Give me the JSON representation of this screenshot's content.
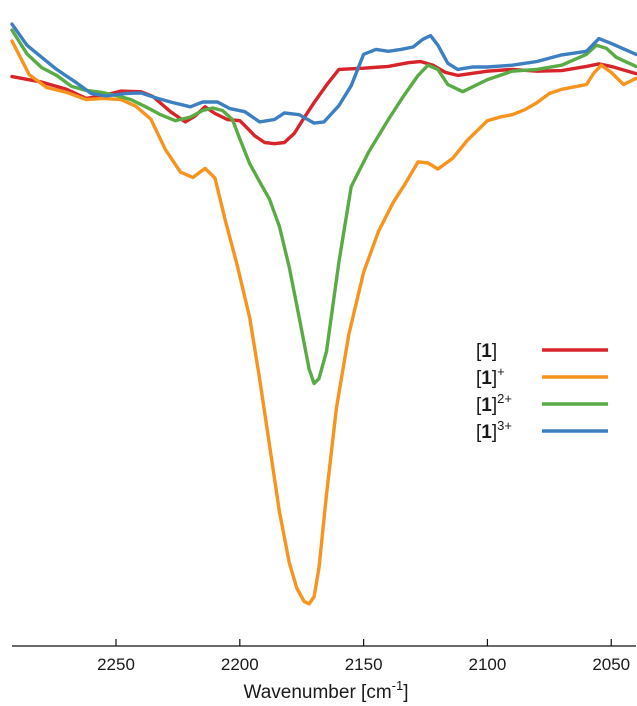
{
  "chart_data": {
    "type": "line",
    "xlabel": "Wavenumber [cm",
    "xlabel_sup": "-1",
    "xlabel_close": "]",
    "ylabel": "",
    "xlim": [
      2292,
      2040
    ],
    "x_reversed": true,
    "ylim": [
      0,
      1
    ],
    "y_axis_visible": false,
    "grid": false,
    "legend_position": "right",
    "x_ticks": [
      {
        "value": 2250,
        "label": "2250"
      },
      {
        "value": 2200,
        "label": "2200"
      },
      {
        "value": 2150,
        "label": "2150"
      },
      {
        "value": 2100,
        "label": "2100"
      },
      {
        "value": 2050,
        "label": "2050"
      }
    ],
    "series": [
      {
        "name_main": "[1]",
        "name_sup": "",
        "color": "#d7242a",
        "x": [
          2292,
          2280,
          2270,
          2262,
          2255,
          2248,
          2240,
          2235,
          2228,
          2222,
          2218,
          2214,
          2210,
          2205,
          2200,
          2197,
          2194,
          2190,
          2186,
          2182,
          2178,
          2174,
          2170,
          2165,
          2160,
          2150,
          2140,
          2132,
          2127,
          2122,
          2117,
          2112,
          2100,
          2090,
          2080,
          2070,
          2060,
          2055,
          2050,
          2040
        ],
        "y": [
          0.893,
          0.884,
          0.872,
          0.857,
          0.862,
          0.869,
          0.868,
          0.86,
          0.835,
          0.818,
          0.828,
          0.843,
          0.832,
          0.822,
          0.82,
          0.808,
          0.795,
          0.784,
          0.782,
          0.784,
          0.799,
          0.825,
          0.85,
          0.879,
          0.905,
          0.907,
          0.91,
          0.916,
          0.918,
          0.912,
          0.9,
          0.895,
          0.902,
          0.905,
          0.902,
          0.903,
          0.91,
          0.914,
          0.91,
          0.898
        ]
      },
      {
        "name_main": "[1]",
        "name_sup": "+",
        "color": "#f7941d",
        "x": [
          2292,
          2285,
          2278,
          2270,
          2262,
          2255,
          2248,
          2242,
          2236,
          2230,
          2224,
          2219,
          2214,
          2210,
          2206,
          2201,
          2196,
          2192,
          2188,
          2184,
          2180,
          2177,
          2174,
          2172,
          2170,
          2168,
          2165,
          2161,
          2156,
          2150,
          2144,
          2138,
          2133,
          2128,
          2124,
          2120,
          2114,
          2108,
          2100,
          2095,
          2090,
          2085,
          2080,
          2075,
          2070,
          2065,
          2060,
          2057,
          2054,
          2050,
          2045,
          2040
        ],
        "y": [
          0.952,
          0.896,
          0.875,
          0.867,
          0.855,
          0.857,
          0.855,
          0.844,
          0.823,
          0.772,
          0.735,
          0.726,
          0.741,
          0.725,
          0.657,
          0.58,
          0.494,
          0.393,
          0.283,
          0.173,
          0.088,
          0.046,
          0.024,
          0.02,
          0.032,
          0.08,
          0.201,
          0.344,
          0.466,
          0.569,
          0.637,
          0.685,
          0.717,
          0.752,
          0.75,
          0.74,
          0.758,
          0.788,
          0.82,
          0.826,
          0.83,
          0.838,
          0.85,
          0.865,
          0.872,
          0.876,
          0.88,
          0.899,
          0.912,
          0.9,
          0.88,
          0.89
        ]
      },
      {
        "name_main": "[1]",
        "name_sup": "2+",
        "color": "#5aab45",
        "x": [
          2292,
          2286,
          2280,
          2274,
          2268,
          2262,
          2256,
          2250,
          2244,
          2238,
          2232,
          2226,
          2220,
          2215,
          2211,
          2207,
          2203,
          2200,
          2196,
          2192,
          2188,
          2184,
          2180,
          2176,
          2172,
          2170,
          2168,
          2165,
          2160,
          2155,
          2148,
          2140,
          2134,
          2128,
          2124,
          2120,
          2116,
          2110,
          2100,
          2090,
          2080,
          2070,
          2060,
          2056,
          2052,
          2048,
          2040
        ],
        "y": [
          0.97,
          0.931,
          0.908,
          0.895,
          0.877,
          0.87,
          0.867,
          0.862,
          0.855,
          0.843,
          0.83,
          0.82,
          0.826,
          0.837,
          0.841,
          0.837,
          0.822,
          0.79,
          0.749,
          0.719,
          0.69,
          0.645,
          0.577,
          0.494,
          0.409,
          0.385,
          0.393,
          0.438,
          0.586,
          0.711,
          0.768,
          0.822,
          0.86,
          0.895,
          0.912,
          0.905,
          0.88,
          0.868,
          0.888,
          0.902,
          0.905,
          0.912,
          0.93,
          0.945,
          0.94,
          0.925,
          0.91
        ]
      },
      {
        "name_main": "[1]",
        "name_sup": "3+",
        "color": "#3d7fc1",
        "x": [
          2292,
          2286,
          2280,
          2274,
          2266,
          2260,
          2254,
          2246,
          2240,
          2234,
          2228,
          2220,
          2215,
          2209,
          2204,
          2198,
          2192,
          2186,
          2182,
          2176,
          2170,
          2166,
          2160,
          2155,
          2150,
          2145,
          2140,
          2135,
          2130,
          2126,
          2123,
          2120,
          2116,
          2112,
          2106,
          2100,
          2090,
          2080,
          2070,
          2060,
          2055,
          2050,
          2040
        ],
        "y": [
          0.98,
          0.945,
          0.925,
          0.905,
          0.883,
          0.865,
          0.861,
          0.865,
          0.866,
          0.858,
          0.851,
          0.843,
          0.851,
          0.851,
          0.84,
          0.835,
          0.818,
          0.822,
          0.833,
          0.83,
          0.816,
          0.818,
          0.845,
          0.878,
          0.93,
          0.938,
          0.935,
          0.938,
          0.942,
          0.955,
          0.961,
          0.945,
          0.915,
          0.905,
          0.909,
          0.909,
          0.912,
          0.918,
          0.929,
          0.935,
          0.956,
          0.948,
          0.93
        ]
      }
    ]
  }
}
